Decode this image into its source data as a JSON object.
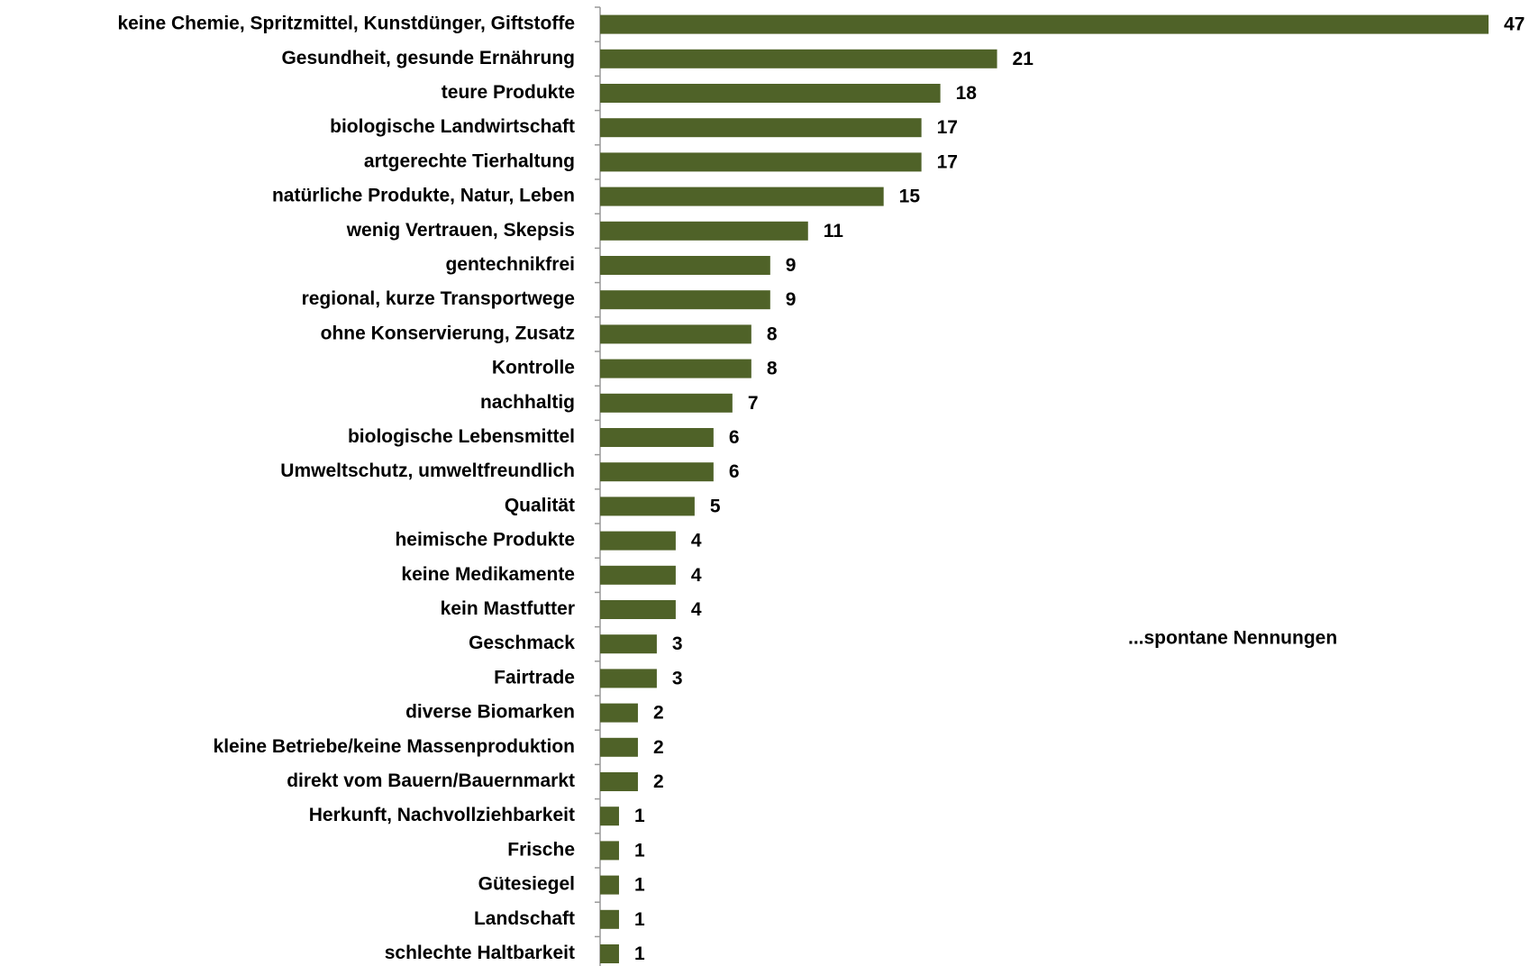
{
  "chart_data": {
    "type": "barh",
    "categories": [
      "keine Chemie, Spritzmittel, Kunstdünger, Giftstoffe",
      "Gesundheit, gesunde Ernährung",
      "teure Produkte",
      "biologische Landwirtschaft",
      "artgerechte Tierhaltung",
      "natürliche Produkte, Natur, Leben",
      "wenig Vertrauen, Skepsis",
      "gentechnikfrei",
      "regional, kurze Transportwege",
      "ohne Konservierung, Zusatz",
      "Kontrolle",
      "nachhaltig",
      "biologische Lebensmittel",
      "Umweltschutz, umweltfreundlich",
      "Qualität",
      "heimische Produkte",
      "keine Medikamente",
      "kein Mastfutter",
      "Geschmack",
      "Fairtrade",
      "diverse Biomarken",
      "kleine Betriebe/keine Massenproduktion",
      "direkt vom Bauern/Bauernmarkt",
      "Herkunft, Nachvollziehbarkeit",
      "Frische",
      "Gütesiegel",
      "Landschaft",
      "schlechte Haltbarkeit"
    ],
    "values": [
      47,
      21,
      18,
      17,
      17,
      15,
      11,
      9,
      9,
      8,
      8,
      7,
      6,
      6,
      5,
      4,
      4,
      4,
      3,
      3,
      2,
      2,
      2,
      1,
      1,
      1,
      1,
      1
    ],
    "color": "#4f6228",
    "xlim": [
      0,
      47
    ],
    "annotation": "...spontane Nennungen"
  }
}
